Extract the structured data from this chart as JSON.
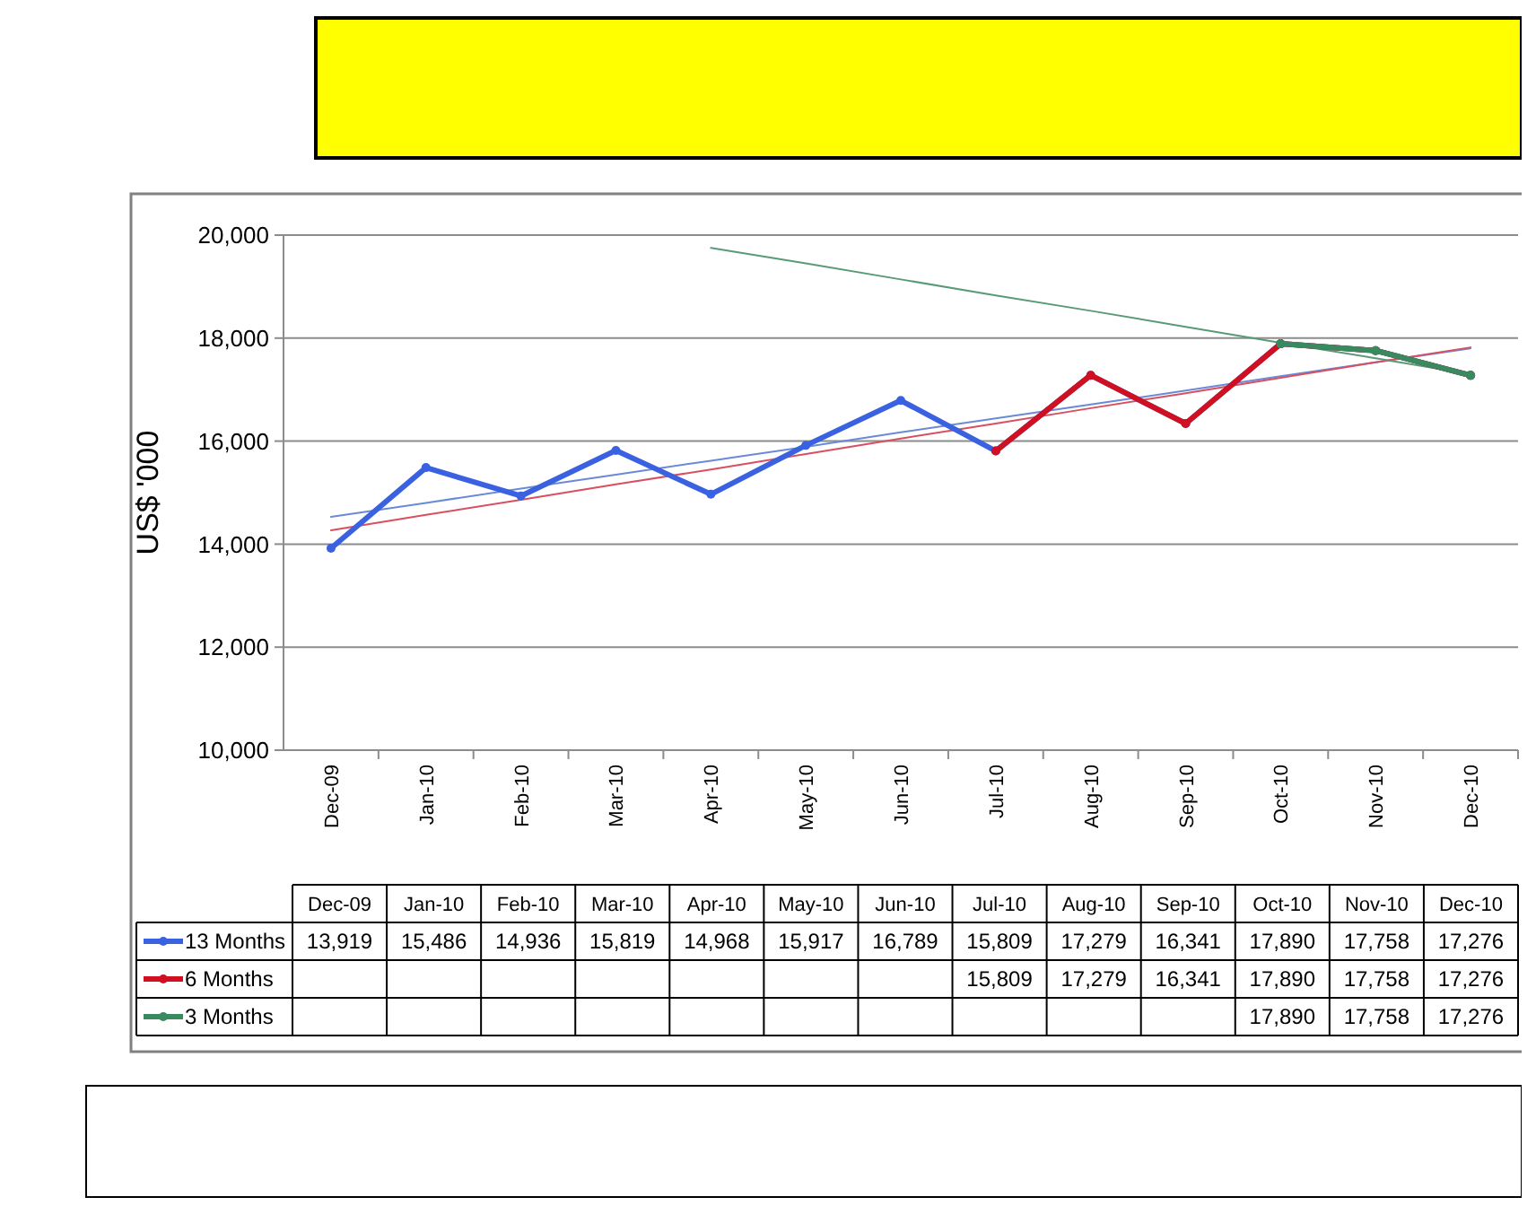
{
  "chart_data": {
    "type": "line",
    "ylabel": "US$ '000",
    "categories": [
      "Dec-09",
      "Jan-10",
      "Feb-10",
      "Mar-10",
      "Apr-10",
      "May-10",
      "Jun-10",
      "Jul-10",
      "Aug-10",
      "Sep-10",
      "Oct-10",
      "Nov-10",
      "Dec-10"
    ],
    "series": [
      {
        "type": "line",
        "color": "#6a8ad8",
        "marker": "none",
        "values": [
          14530,
          14800,
          15080,
          15350,
          15620,
          15890,
          16170,
          16440,
          16710,
          16980,
          17260,
          17530,
          17800
        ]
      },
      {
        "type": "line",
        "color": "#d85060",
        "marker": "none",
        "values": [
          14270,
          14570,
          14860,
          15160,
          15450,
          15750,
          16050,
          16340,
          16640,
          16930,
          17230,
          17530,
          17820
        ]
      },
      {
        "type": "line",
        "color": "#5a9a78",
        "marker": "none",
        "values": [
          null,
          null,
          null,
          null,
          19750,
          19450,
          19140,
          18830,
          18530,
          18220,
          17910,
          17610,
          17300
        ]
      },
      {
        "name": "13 Months",
        "color": "#3a62e0",
        "values": [
          13919,
          15486,
          14936,
          15819,
          14968,
          15917,
          16789,
          15809,
          17279,
          16341,
          17890,
          17758,
          17276
        ],
        "value_labels": [
          "13,919",
          "15,486",
          "14,936",
          "15,819",
          "14,968",
          "15,917",
          "16,789",
          "15,809",
          "17,279",
          "16,341",
          "17,890",
          "17,758",
          "17,276"
        ]
      },
      {
        "name": "6 Months",
        "color": "#d01020",
        "values": [
          null,
          null,
          null,
          null,
          null,
          null,
          null,
          15809,
          17279,
          16341,
          17890,
          17758,
          17276
        ],
        "value_labels": [
          null,
          null,
          null,
          null,
          null,
          null,
          null,
          "15,809",
          "17,279",
          "16,341",
          "17,890",
          "17,758",
          "17,276"
        ]
      },
      {
        "name": "3 Months",
        "color": "#3a8a60",
        "values": [
          null,
          null,
          null,
          null,
          null,
          null,
          null,
          null,
          null,
          null,
          17890,
          17758,
          17276
        ],
        "value_labels": [
          null,
          null,
          null,
          null,
          null,
          null,
          null,
          null,
          null,
          null,
          "17,890",
          "17,758",
          "17,276"
        ]
      }
    ],
    "ylim": [
      10000,
      20000
    ],
    "yticks": [
      {
        "value": 10000,
        "label": "10,000"
      },
      {
        "value": 12000,
        "label": "12,000"
      },
      {
        "value": 14000,
        "label": "14,000"
      },
      {
        "value": 16000,
        "label": "16,000"
      },
      {
        "value": 18000,
        "label": "18,000"
      },
      {
        "value": 20000,
        "label": "20,000"
      }
    ],
    "grid": "y",
    "marker": "circle",
    "legend": "bottom"
  }
}
